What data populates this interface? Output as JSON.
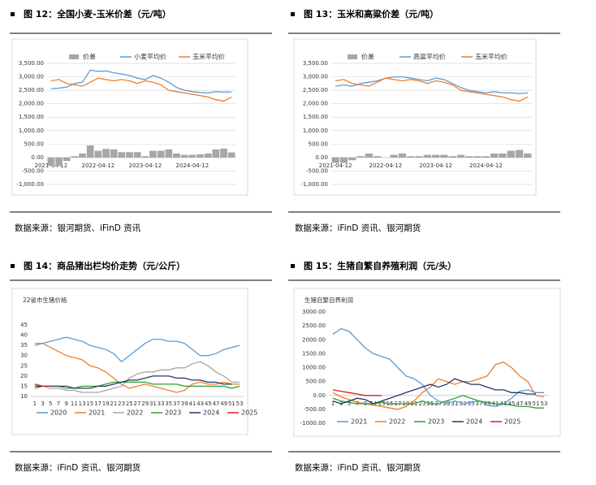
{
  "chart_data": [
    {
      "type": "bar-line",
      "caption": "图 12：全国小麦-玉米价差（元/吨）",
      "source": "数据来源：银河期货、iFinD 资讯",
      "categories": [
        "2021-04-12",
        null,
        null,
        null,
        null,
        null,
        "2022-04-12",
        null,
        null,
        null,
        null,
        null,
        "2023-04-12",
        null,
        null,
        null,
        null,
        null,
        "2024-04-12",
        null,
        null,
        null,
        null,
        null
      ],
      "series": [
        {
          "name": "价差",
          "type": "bar",
          "color": "#a6a6a6",
          "values": [
            -290,
            -320,
            -130,
            50,
            150,
            450,
            250,
            320,
            300,
            200,
            200,
            200,
            50,
            250,
            250,
            300,
            150,
            100,
            100,
            120,
            150,
            300,
            330,
            190
          ]
        },
        {
          "name": "小麦平均价",
          "type": "line",
          "color": "#5b9bd5",
          "values": [
            2560,
            2580,
            2620,
            2750,
            2800,
            3250,
            3200,
            3220,
            3150,
            3100,
            3050,
            2950,
            2900,
            3050,
            2950,
            2800,
            2600,
            2500,
            2450,
            2420,
            2400,
            2450,
            2430,
            2440
          ]
        },
        {
          "name": "玉米平均价",
          "type": "line",
          "color": "#ed7d31",
          "values": [
            2850,
            2900,
            2750,
            2700,
            2650,
            2800,
            2950,
            2900,
            2850,
            2900,
            2850,
            2750,
            2850,
            2800,
            2700,
            2500,
            2450,
            2400,
            2350,
            2300,
            2250,
            2150,
            2100,
            2250
          ]
        }
      ],
      "ylim": [
        -1000,
        3500
      ],
      "yticks": [
        {
          "value": -1000,
          "label": "-1,000.00"
        },
        {
          "value": -500,
          "label": "-500.00"
        },
        {
          "value": 0,
          "label": "0.00"
        },
        {
          "value": 500,
          "label": "500.00"
        },
        {
          "value": 1000,
          "label": "1,000.00"
        },
        {
          "value": 1500,
          "label": "1,500.00"
        },
        {
          "value": 2000,
          "label": "2,000.00"
        },
        {
          "value": 2500,
          "label": "2,500.00"
        },
        {
          "value": 3000,
          "label": "3,000.00"
        },
        {
          "value": 3500,
          "label": "3,500.00"
        }
      ],
      "grid": true
    },
    {
      "type": "bar-line",
      "caption": "图 13：玉米和高粱价差（元/吨）",
      "source": "数据来源：iFinD 资讯、银河期货",
      "categories": [
        "2021-04-12",
        null,
        null,
        null,
        null,
        null,
        "2022-04-12",
        null,
        null,
        null,
        null,
        null,
        "2023-04-12",
        null,
        null,
        null,
        null,
        null,
        "2024-04-12",
        null,
        null,
        null,
        null,
        null
      ],
      "series": [
        {
          "name": "价差",
          "type": "bar",
          "color": "#a6a6a6",
          "values": [
            -200,
            -200,
            -100,
            50,
            150,
            50,
            0,
            100,
            150,
            50,
            50,
            100,
            100,
            100,
            50,
            100,
            50,
            50,
            50,
            150,
            150,
            250,
            280,
            150
          ]
        },
        {
          "name": "高粱平均价",
          "type": "line",
          "color": "#5b9bd5",
          "values": [
            2650,
            2700,
            2650,
            2750,
            2800,
            2850,
            2950,
            3000,
            3000,
            2950,
            2900,
            2850,
            2950,
            2900,
            2750,
            2600,
            2500,
            2450,
            2400,
            2450,
            2400,
            2400,
            2380,
            2400
          ]
        },
        {
          "name": "玉米平均价",
          "type": "line",
          "color": "#ed7d31",
          "values": [
            2850,
            2900,
            2750,
            2700,
            2650,
            2800,
            2950,
            2900,
            2850,
            2900,
            2850,
            2750,
            2850,
            2800,
            2700,
            2500,
            2450,
            2400,
            2350,
            2300,
            2250,
            2150,
            2100,
            2250
          ]
        }
      ],
      "ylim": [
        -1000,
        3500
      ],
      "yticks": [
        {
          "value": -1000,
          "label": "-1,000.00"
        },
        {
          "value": -500,
          "label": "-500.00"
        },
        {
          "value": 0,
          "label": "0.00"
        },
        {
          "value": 500,
          "label": "500.00"
        },
        {
          "value": 1000,
          "label": "1,000.00"
        },
        {
          "value": 1500,
          "label": "1,500.00"
        },
        {
          "value": 2000,
          "label": "2,000.00"
        },
        {
          "value": 2500,
          "label": "2,500.00"
        },
        {
          "value": 3000,
          "label": "3,000.00"
        },
        {
          "value": 3500,
          "label": "3,500.00"
        }
      ],
      "grid": true
    },
    {
      "type": "line",
      "caption": "图 14：商品猪出栏均价走势（元/公斤）",
      "title": "22省市生猪价格",
      "source": "数据来源：iFinD 资讯、银河期货",
      "categories": [
        "1",
        "3",
        "5",
        "7",
        "9",
        "11",
        "13",
        "15",
        "17",
        "19",
        "21",
        "23",
        "25",
        "27",
        "29",
        "31",
        "33",
        "35",
        "37",
        "39",
        "41",
        "43",
        "45",
        "47",
        "49",
        "51",
        "53"
      ],
      "series": [
        {
          "name": "2020",
          "color": "#5b9bd5",
          "values": [
            35,
            36,
            37,
            38,
            39,
            38,
            37,
            35,
            34,
            33,
            31,
            27,
            30,
            33,
            36,
            38,
            38,
            37,
            37,
            36,
            33,
            30,
            30,
            31,
            33,
            34,
            35
          ]
        },
        {
          "name": "2021",
          "color": "#ed7d31",
          "values": [
            36,
            36,
            34,
            32,
            30,
            29,
            28,
            25,
            24,
            22,
            19,
            16,
            14,
            15,
            16,
            15,
            14,
            13,
            12,
            13,
            16,
            17,
            16,
            16,
            17,
            16,
            16
          ]
        },
        {
          "name": "2022",
          "color": "#a5a5a5",
          "values": [
            16,
            15,
            14,
            14,
            13,
            13,
            12,
            12,
            12,
            13,
            14,
            15,
            19,
            21,
            22,
            22,
            23,
            23,
            24,
            24,
            26,
            27,
            25,
            22,
            20,
            17,
            17
          ]
        },
        {
          "name": "2023",
          "color": "#2ca02c",
          "values": [
            14,
            15,
            15,
            15,
            14,
            14,
            15,
            15,
            15,
            16,
            17,
            17,
            17,
            17,
            17,
            16,
            16,
            16,
            16,
            15,
            15,
            15,
            15,
            15,
            15,
            14,
            15
          ]
        },
        {
          "name": "2024",
          "color": "#1f3864",
          "values": [
            15,
            15,
            15,
            15,
            15,
            14,
            14,
            14,
            15,
            15,
            16,
            17,
            18,
            18,
            19,
            20,
            20,
            20,
            19,
            19,
            18,
            18,
            17,
            17,
            16,
            16,
            null
          ]
        },
        {
          "name": "2025",
          "color": "#e31a1c",
          "values": [
            16,
            15,
            15,
            null,
            null,
            null,
            null,
            null,
            null,
            null,
            null,
            null,
            null,
            null,
            null,
            null,
            null,
            null,
            null,
            null,
            null,
            null,
            null,
            null,
            null,
            null,
            null
          ]
        }
      ],
      "ylim": [
        10,
        45
      ],
      "yticks": [
        10,
        15,
        20,
        25,
        30,
        35,
        40,
        45
      ],
      "grid": false
    },
    {
      "type": "line",
      "caption": "图 15：生猪自繁自养殖利润（元/头）",
      "title": "生猪自繁自养利润",
      "source": "数据来源：iFinD 资讯、银河期货",
      "categories": [
        "1",
        "3",
        "5",
        "7",
        "9",
        "11",
        "13",
        "15",
        "17",
        "19",
        "21",
        "23",
        "25",
        "27",
        "29",
        "31",
        "33",
        "35",
        "37",
        "39",
        "41",
        "43",
        "45",
        "47",
        "49",
        "51",
        "53"
      ],
      "series": [
        {
          "name": "2021",
          "color": "#5b9bd5",
          "values": [
            2200,
            2400,
            2300,
            2000,
            1700,
            1500,
            1400,
            1300,
            1000,
            700,
            600,
            400,
            0,
            -200,
            -300,
            -200,
            -300,
            -250,
            -200,
            -350,
            -400,
            -300,
            -100,
            150,
            200,
            100,
            100
          ]
        },
        {
          "name": "2022",
          "color": "#ed7d31",
          "values": [
            100,
            -50,
            -150,
            -250,
            -300,
            -350,
            -400,
            -450,
            -500,
            -400,
            -200,
            100,
            300,
            600,
            500,
            400,
            500,
            500,
            600,
            700,
            1100,
            1200,
            1000,
            700,
            500,
            0,
            -50
          ]
        },
        {
          "name": "2023",
          "color": "#2ca02c",
          "values": [
            -100,
            -200,
            -250,
            -300,
            -300,
            -300,
            -250,
            -300,
            -300,
            -300,
            -300,
            -200,
            -300,
            -300,
            -200,
            -100,
            0,
            -100,
            -200,
            -250,
            -300,
            -300,
            -350,
            -400,
            -400,
            -450,
            -450
          ]
        },
        {
          "name": "2024",
          "color": "#1f3864",
          "values": [
            -200,
            -300,
            -200,
            -100,
            -150,
            -300,
            -200,
            -100,
            0,
            100,
            200,
            300,
            400,
            300,
            400,
            600,
            500,
            400,
            400,
            300,
            200,
            200,
            100,
            100,
            50,
            50,
            null
          ]
        },
        {
          "name": "2025",
          "color": "#e31a1c",
          "values": [
            200,
            150,
            100,
            50,
            0,
            0,
            0,
            null,
            null,
            null,
            null,
            null,
            null,
            null,
            null,
            null,
            null,
            null,
            null,
            null,
            null,
            null,
            null,
            null,
            null,
            null,
            null
          ]
        }
      ],
      "ylim": [
        -1000,
        3000
      ],
      "yticks": [
        {
          "value": -1000,
          "label": "-1000.00"
        },
        {
          "value": -500,
          "label": "-500.00"
        },
        {
          "value": 0,
          "label": "0.00"
        },
        {
          "value": 500,
          "label": "500.00"
        },
        {
          "value": 1000,
          "label": "1000.00"
        },
        {
          "value": 1500,
          "label": "1500.00"
        },
        {
          "value": 2000,
          "label": "2000.00"
        },
        {
          "value": 2500,
          "label": "2500.00"
        },
        {
          "value": 3000,
          "label": "3000.00"
        }
      ],
      "grid": false
    }
  ]
}
